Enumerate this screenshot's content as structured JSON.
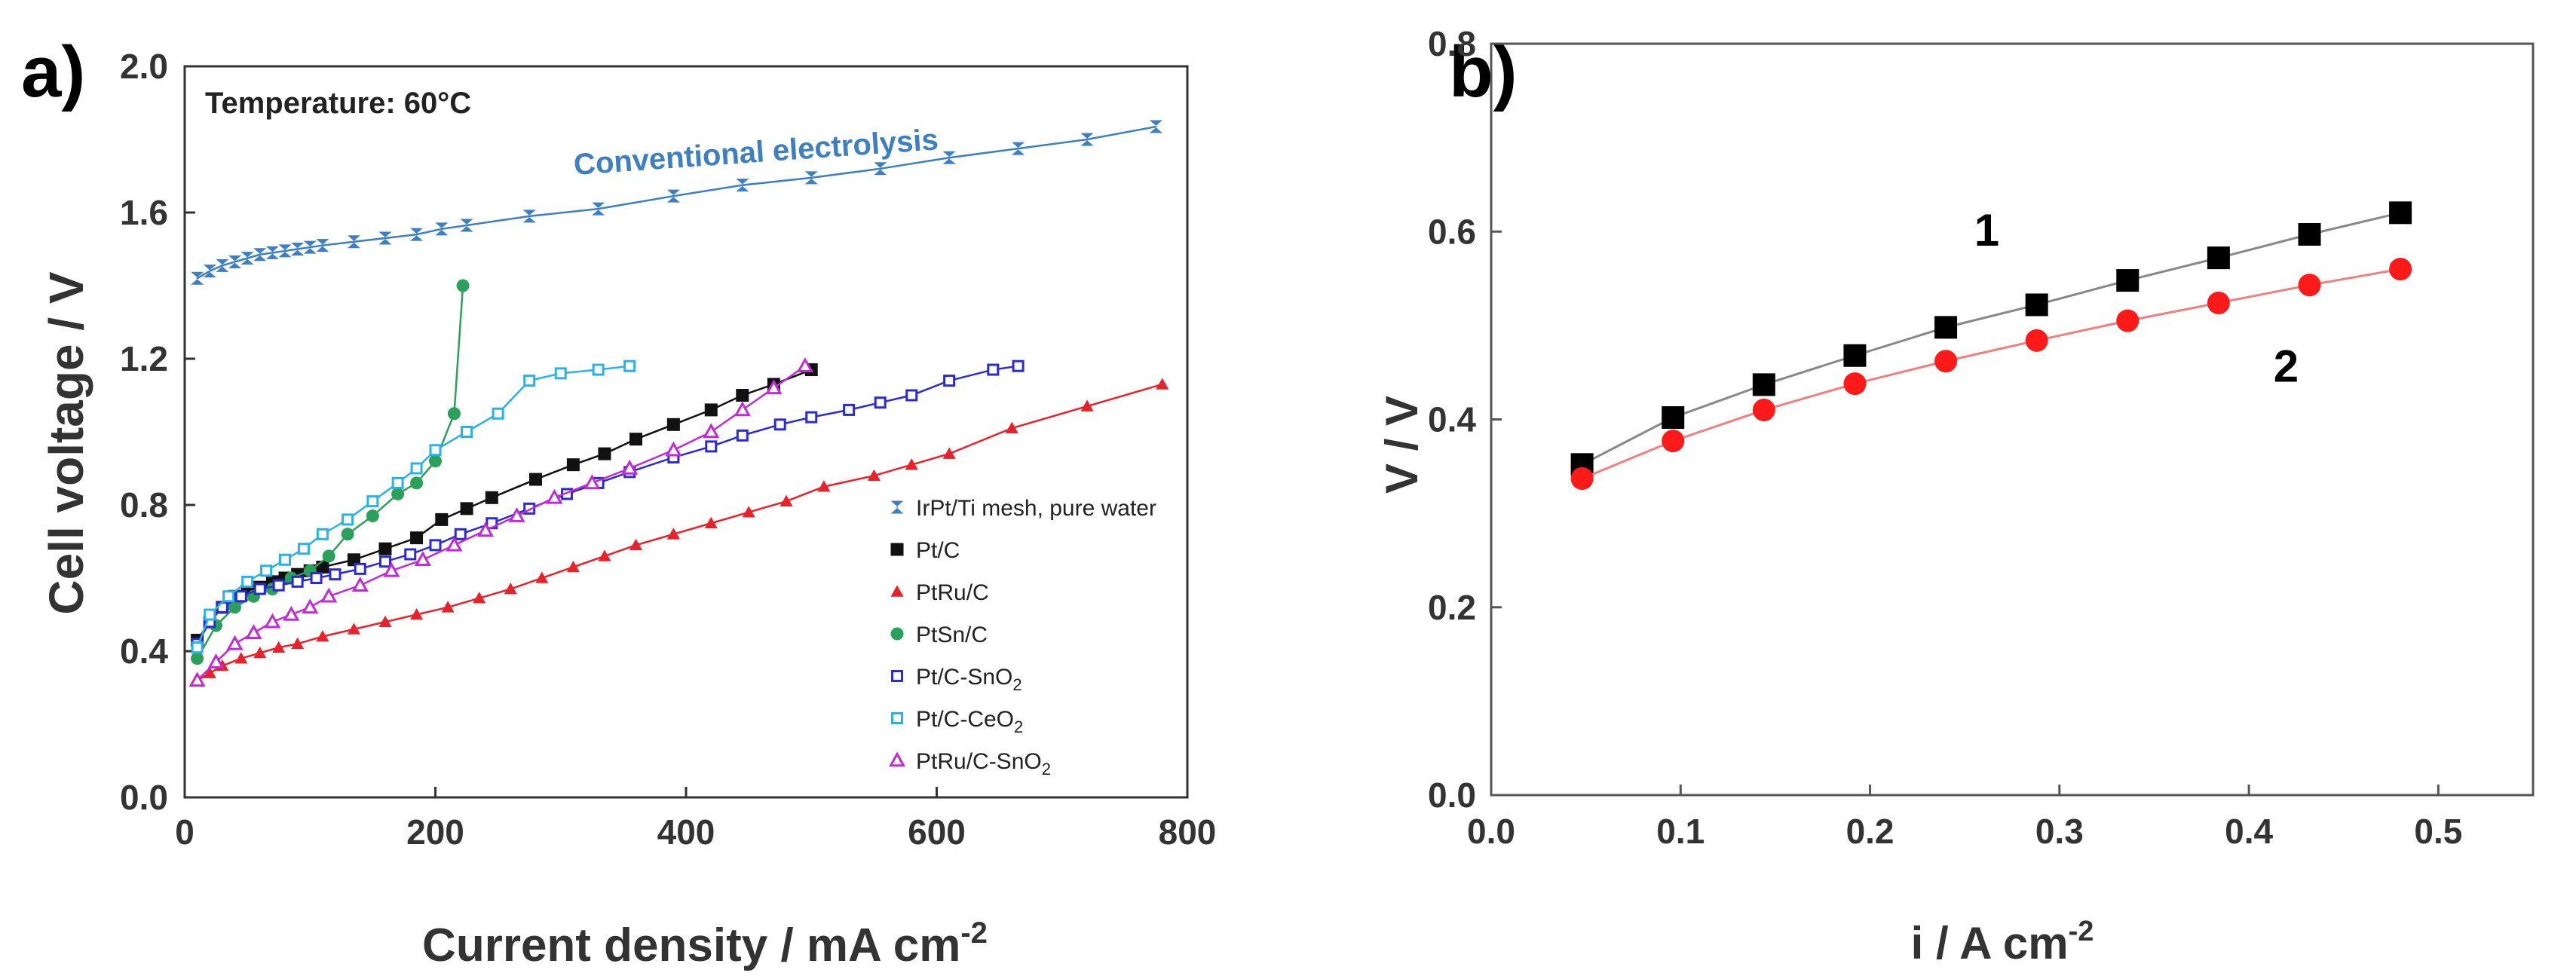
{
  "chart_data": [
    {
      "panel": "a)",
      "type": "line",
      "xlabel": "Current density / mA cm",
      "xlabel_sup": "-2",
      "ylabel": "Cell voltage / V",
      "xlim": [
        0,
        800
      ],
      "ylim": [
        0.0,
        2.0
      ],
      "x_ticks": [
        "0",
        "200",
        "400",
        "600",
        "800"
      ],
      "y_ticks": [
        "0.0",
        "0.4",
        "0.8",
        "1.2",
        "1.6",
        "2.0"
      ],
      "x_tick_values": [
        0,
        200,
        400,
        600,
        800
      ],
      "y_tick_values": [
        0.0,
        0.4,
        0.8,
        1.2,
        1.6,
        2.0
      ],
      "annotations": [
        {
          "text": "Temperature: 60°C"
        },
        {
          "text": "Conventional electrolysis"
        }
      ],
      "legend": "bottom-right",
      "series": [
        {
          "name": "IrPt/Ti mesh, pure water",
          "sub": "",
          "color": "#3d7fc0",
          "marker": "bowtie",
          "x": [
            10,
            20,
            30,
            40,
            50,
            60,
            70,
            80,
            90,
            100,
            110,
            135,
            160,
            185,
            205,
            225,
            275,
            330,
            390,
            445,
            500,
            555,
            610,
            665,
            720,
            775
          ],
          "y": [
            1.42,
            1.44,
            1.455,
            1.465,
            1.475,
            1.485,
            1.49,
            1.495,
            1.5,
            1.505,
            1.51,
            1.52,
            1.53,
            1.54,
            1.555,
            1.565,
            1.59,
            1.61,
            1.645,
            1.675,
            1.695,
            1.72,
            1.75,
            1.775,
            1.8,
            1.835
          ]
        },
        {
          "name": "Pt/C",
          "sub": "",
          "color": "#111111",
          "marker": "square",
          "x": [
            10,
            20,
            30,
            40,
            50,
            60,
            70,
            80,
            90,
            100,
            110,
            135,
            160,
            185,
            205,
            225,
            245,
            280,
            310,
            335,
            360,
            390,
            420,
            445,
            470,
            500
          ],
          "y": [
            0.43,
            0.48,
            0.52,
            0.55,
            0.565,
            0.575,
            0.59,
            0.6,
            0.61,
            0.62,
            0.63,
            0.65,
            0.68,
            0.71,
            0.76,
            0.79,
            0.82,
            0.87,
            0.91,
            0.94,
            0.98,
            1.02,
            1.06,
            1.1,
            1.13,
            1.17
          ]
        },
        {
          "name": "PtRu/C",
          "sub": "",
          "color": "#e8222a",
          "marker": "triangle",
          "x": [
            10,
            20,
            30,
            45,
            60,
            75,
            90,
            110,
            135,
            160,
            185,
            210,
            235,
            260,
            285,
            310,
            335,
            360,
            390,
            420,
            450,
            480,
            510,
            550,
            580,
            610,
            660,
            720,
            780
          ],
          "y": [
            0.32,
            0.34,
            0.36,
            0.38,
            0.395,
            0.41,
            0.42,
            0.44,
            0.46,
            0.48,
            0.5,
            0.52,
            0.545,
            0.57,
            0.6,
            0.63,
            0.66,
            0.69,
            0.72,
            0.75,
            0.78,
            0.81,
            0.85,
            0.88,
            0.91,
            0.94,
            1.01,
            1.07,
            1.13
          ]
        },
        {
          "name": "PtSn/C",
          "sub": "",
          "color": "#2ba05a",
          "marker": "circle",
          "x": [
            10,
            25,
            40,
            55,
            70,
            85,
            100,
            115,
            130,
            150,
            170,
            185,
            200,
            215,
            222
          ],
          "y": [
            0.38,
            0.47,
            0.52,
            0.55,
            0.57,
            0.6,
            0.62,
            0.66,
            0.72,
            0.77,
            0.83,
            0.86,
            0.92,
            1.05,
            1.4
          ]
        },
        {
          "name": "Pt/C-SnO",
          "sub": "2",
          "color": "#2c2ad6",
          "marker": "opensquare",
          "x": [
            10,
            20,
            30,
            45,
            60,
            75,
            90,
            105,
            120,
            140,
            160,
            180,
            200,
            220,
            245,
            275,
            305,
            330,
            355,
            390,
            420,
            445,
            475,
            500,
            530,
            555,
            580,
            610,
            645,
            665
          ],
          "y": [
            0.42,
            0.48,
            0.52,
            0.55,
            0.57,
            0.58,
            0.59,
            0.6,
            0.61,
            0.625,
            0.645,
            0.665,
            0.69,
            0.72,
            0.75,
            0.79,
            0.83,
            0.86,
            0.89,
            0.93,
            0.96,
            0.99,
            1.02,
            1.04,
            1.06,
            1.08,
            1.1,
            1.14,
            1.17,
            1.18
          ]
        },
        {
          "name": "Pt/C-CeO",
          "sub": "2",
          "color": "#29b2e8",
          "marker": "opensquare",
          "x": [
            10,
            20,
            35,
            50,
            65,
            80,
            95,
            110,
            130,
            150,
            170,
            185,
            200,
            225,
            250,
            275,
            300,
            330,
            355
          ],
          "y": [
            0.41,
            0.5,
            0.55,
            0.59,
            0.62,
            0.65,
            0.68,
            0.72,
            0.76,
            0.81,
            0.86,
            0.9,
            0.95,
            1.0,
            1.05,
            1.14,
            1.16,
            1.17,
            1.18
          ]
        },
        {
          "name": "PtRu/C-SnO",
          "sub": "2",
          "color": "#c12bd6",
          "marker": "opentriangle",
          "x": [
            10,
            25,
            40,
            55,
            70,
            85,
            100,
            115,
            140,
            165,
            190,
            215,
            240,
            265,
            295,
            325,
            355,
            390,
            420,
            445,
            470,
            495
          ],
          "y": [
            0.32,
            0.37,
            0.42,
            0.45,
            0.48,
            0.5,
            0.52,
            0.55,
            0.58,
            0.62,
            0.65,
            0.69,
            0.73,
            0.77,
            0.82,
            0.86,
            0.9,
            0.95,
            1.0,
            1.06,
            1.12,
            1.18
          ]
        }
      ]
    },
    {
      "panel": "b)",
      "type": "line",
      "xlabel": "i / A cm",
      "xlabel_sup": "-2",
      "ylabel": "V / V",
      "xlim": [
        0.0,
        0.55
      ],
      "ylim": [
        0.0,
        0.8
      ],
      "x_ticks": [
        "0.0",
        "0.1",
        "0.2",
        "0.3",
        "0.4",
        "0.5"
      ],
      "y_ticks": [
        "0.0",
        "0.2",
        "0.4",
        "0.6",
        "0.8"
      ],
      "x_tick_values": [
        0.0,
        0.1,
        0.2,
        0.3,
        0.4,
        0.5
      ],
      "y_tick_values": [
        0.0,
        0.2,
        0.4,
        0.6,
        0.8
      ],
      "series": [
        {
          "name": "1",
          "color": "#000000",
          "line": "#888888",
          "marker": "square",
          "x": [
            0.048,
            0.096,
            0.144,
            0.192,
            0.24,
            0.288,
            0.336,
            0.384,
            0.432,
            0.48
          ],
          "y": [
            0.352,
            0.402,
            0.437,
            0.468,
            0.498,
            0.522,
            0.548,
            0.572,
            0.597,
            0.62
          ]
        },
        {
          "name": "2",
          "color": "#ff1a1a",
          "line": "#f08080",
          "marker": "circle",
          "x": [
            0.048,
            0.096,
            0.144,
            0.192,
            0.24,
            0.288,
            0.336,
            0.384,
            0.432,
            0.48
          ],
          "y": [
            0.337,
            0.377,
            0.41,
            0.438,
            0.462,
            0.484,
            0.505,
            0.524,
            0.543,
            0.56
          ]
        }
      ]
    }
  ]
}
